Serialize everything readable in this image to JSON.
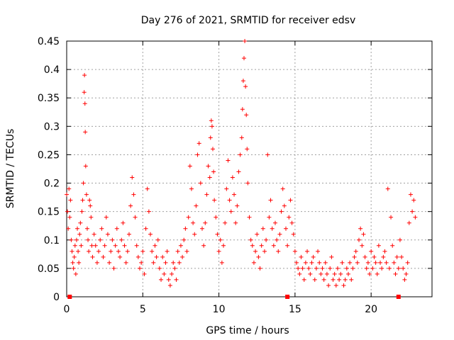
{
  "chart_data": {
    "type": "scatter",
    "title": "Day 276 of 2021, SRMTID for receiver edsv",
    "xlabel": "GPS time / hours",
    "ylabel": "SRMTID / TECUs",
    "xlim": [
      0,
      24
    ],
    "ylim": [
      0,
      0.45
    ],
    "xticks": [
      0,
      5,
      10,
      15,
      20
    ],
    "xtick_labels": [
      "0",
      "5",
      "10",
      "15",
      "20"
    ],
    "yticks": [
      0,
      0.05,
      0.1,
      0.15,
      0.2,
      0.25,
      0.3,
      0.35,
      0.4,
      0.45
    ],
    "ytick_labels": [
      "0",
      "0.05",
      "0.1",
      "0.15",
      "0.2",
      "0.25",
      "0.3",
      "0.35",
      "0.4",
      "0.45"
    ],
    "grid": true,
    "marker": "+",
    "color": "#ff0000",
    "series": [
      {
        "name": "SRMTID",
        "points": [
          [
            0.0,
            0.18
          ],
          [
            0.05,
            0.15
          ],
          [
            0.1,
            0.12
          ],
          [
            0.15,
            0.19
          ],
          [
            0.2,
            0.14
          ],
          [
            0.25,
            0.17
          ],
          [
            0.3,
            0.1
          ],
          [
            0.35,
            0.08
          ],
          [
            0.4,
            0.06
          ],
          [
            0.45,
            0.05
          ],
          [
            0.5,
            0.07
          ],
          [
            0.55,
            0.09
          ],
          [
            0.6,
            0.04
          ],
          [
            0.65,
            0.1
          ],
          [
            0.7,
            0.12
          ],
          [
            0.75,
            0.08
          ],
          [
            0.8,
            0.06
          ],
          [
            0.85,
            0.11
          ],
          [
            0.9,
            0.13
          ],
          [
            0.95,
            0.09
          ],
          [
            1.0,
            0.15
          ],
          [
            1.05,
            0.17
          ],
          [
            1.1,
            0.2
          ],
          [
            1.15,
            0.36
          ],
          [
            1.17,
            0.39
          ],
          [
            1.2,
            0.34
          ],
          [
            1.22,
            0.29
          ],
          [
            1.25,
            0.23
          ],
          [
            1.3,
            0.18
          ],
          [
            1.35,
            0.12
          ],
          [
            1.4,
            0.1
          ],
          [
            1.45,
            0.08
          ],
          [
            1.5,
            0.17
          ],
          [
            1.55,
            0.16
          ],
          [
            1.6,
            0.14
          ],
          [
            1.65,
            0.09
          ],
          [
            1.7,
            0.07
          ],
          [
            1.8,
            0.11
          ],
          [
            1.9,
            0.09
          ],
          [
            2.0,
            0.06
          ],
          [
            2.1,
            0.08
          ],
          [
            2.2,
            0.1
          ],
          [
            2.3,
            0.12
          ],
          [
            2.4,
            0.07
          ],
          [
            2.5,
            0.09
          ],
          [
            2.6,
            0.14
          ],
          [
            2.7,
            0.11
          ],
          [
            2.8,
            0.06
          ],
          [
            2.9,
            0.08
          ],
          [
            3.0,
            0.1
          ],
          [
            3.1,
            0.05
          ],
          [
            3.2,
            0.09
          ],
          [
            3.3,
            0.12
          ],
          [
            3.4,
            0.08
          ],
          [
            3.5,
            0.07
          ],
          [
            3.6,
            0.1
          ],
          [
            3.7,
            0.13
          ],
          [
            3.8,
            0.09
          ],
          [
            3.9,
            0.06
          ],
          [
            4.0,
            0.08
          ],
          [
            4.1,
            0.11
          ],
          [
            4.2,
            0.16
          ],
          [
            4.3,
            0.21
          ],
          [
            4.4,
            0.18
          ],
          [
            4.5,
            0.14
          ],
          [
            4.6,
            0.09
          ],
          [
            4.7,
            0.07
          ],
          [
            4.8,
            0.05
          ],
          [
            4.9,
            0.06
          ],
          [
            5.0,
            0.08
          ],
          [
            5.1,
            0.04
          ],
          [
            5.2,
            0.12
          ],
          [
            5.3,
            0.19
          ],
          [
            5.4,
            0.15
          ],
          [
            5.5,
            0.11
          ],
          [
            5.6,
            0.08
          ],
          [
            5.7,
            0.06
          ],
          [
            5.8,
            0.09
          ],
          [
            5.9,
            0.07
          ],
          [
            6.0,
            0.1
          ],
          [
            6.1,
            0.05
          ],
          [
            6.2,
            0.03
          ],
          [
            6.3,
            0.07
          ],
          [
            6.4,
            0.04
          ],
          [
            6.5,
            0.06
          ],
          [
            6.6,
            0.08
          ],
          [
            6.7,
            0.03
          ],
          [
            6.8,
            0.02
          ],
          [
            6.9,
            0.04
          ],
          [
            7.0,
            0.06
          ],
          [
            7.1,
            0.05
          ],
          [
            7.2,
            0.03
          ],
          [
            7.3,
            0.08
          ],
          [
            7.4,
            0.06
          ],
          [
            7.5,
            0.09
          ],
          [
            7.6,
            0.07
          ],
          [
            7.7,
            0.1
          ],
          [
            7.8,
            0.12
          ],
          [
            7.9,
            0.08
          ],
          [
            8.0,
            0.14
          ],
          [
            8.1,
            0.23
          ],
          [
            8.2,
            0.19
          ],
          [
            8.3,
            0.13
          ],
          [
            8.4,
            0.11
          ],
          [
            8.5,
            0.16
          ],
          [
            8.6,
            0.25
          ],
          [
            8.7,
            0.27
          ],
          [
            8.8,
            0.2
          ],
          [
            8.9,
            0.12
          ],
          [
            9.0,
            0.09
          ],
          [
            9.1,
            0.13
          ],
          [
            9.2,
            0.18
          ],
          [
            9.3,
            0.23
          ],
          [
            9.4,
            0.21
          ],
          [
            9.45,
            0.28
          ],
          [
            9.5,
            0.31
          ],
          [
            9.55,
            0.3
          ],
          [
            9.6,
            0.26
          ],
          [
            9.65,
            0.22
          ],
          [
            9.7,
            0.17
          ],
          [
            9.8,
            0.14
          ],
          [
            9.9,
            0.11
          ],
          [
            10.0,
            0.08
          ],
          [
            10.1,
            0.1
          ],
          [
            10.2,
            0.06
          ],
          [
            10.3,
            0.09
          ],
          [
            10.4,
            0.13
          ],
          [
            10.5,
            0.19
          ],
          [
            10.6,
            0.24
          ],
          [
            10.7,
            0.17
          ],
          [
            10.8,
            0.15
          ],
          [
            10.9,
            0.21
          ],
          [
            11.0,
            0.18
          ],
          [
            11.1,
            0.13
          ],
          [
            11.2,
            0.16
          ],
          [
            11.3,
            0.22
          ],
          [
            11.4,
            0.25
          ],
          [
            11.5,
            0.28
          ],
          [
            11.55,
            0.33
          ],
          [
            11.6,
            0.38
          ],
          [
            11.65,
            0.42
          ],
          [
            11.7,
            0.45
          ],
          [
            11.75,
            0.37
          ],
          [
            11.8,
            0.32
          ],
          [
            11.85,
            0.26
          ],
          [
            11.9,
            0.2
          ],
          [
            12.0,
            0.14
          ],
          [
            12.1,
            0.1
          ],
          [
            12.2,
            0.09
          ],
          [
            12.3,
            0.06
          ],
          [
            12.4,
            0.08
          ],
          [
            12.5,
            0.11
          ],
          [
            12.6,
            0.07
          ],
          [
            12.7,
            0.05
          ],
          [
            12.8,
            0.09
          ],
          [
            12.9,
            0.12
          ],
          [
            13.0,
            0.08
          ],
          [
            13.1,
            0.1
          ],
          [
            13.2,
            0.25
          ],
          [
            13.3,
            0.14
          ],
          [
            13.4,
            0.17
          ],
          [
            13.5,
            0.12
          ],
          [
            13.6,
            0.09
          ],
          [
            13.7,
            0.13
          ],
          [
            13.8,
            0.1
          ],
          [
            13.9,
            0.08
          ],
          [
            14.0,
            0.11
          ],
          [
            14.1,
            0.15
          ],
          [
            14.2,
            0.19
          ],
          [
            14.3,
            0.16
          ],
          [
            14.4,
            0.12
          ],
          [
            14.5,
            0.09
          ],
          [
            14.6,
            0.14
          ],
          [
            14.7,
            0.17
          ],
          [
            14.8,
            0.13
          ],
          [
            14.9,
            0.11
          ],
          [
            15.0,
            0.08
          ],
          [
            15.1,
            0.06
          ],
          [
            15.2,
            0.05
          ],
          [
            15.3,
            0.04
          ],
          [
            15.4,
            0.07
          ],
          [
            15.5,
            0.05
          ],
          [
            15.6,
            0.03
          ],
          [
            15.7,
            0.06
          ],
          [
            15.8,
            0.08
          ],
          [
            15.9,
            0.05
          ],
          [
            16.0,
            0.04
          ],
          [
            16.1,
            0.06
          ],
          [
            16.2,
            0.07
          ],
          [
            16.3,
            0.03
          ],
          [
            16.4,
            0.05
          ],
          [
            16.5,
            0.08
          ],
          [
            16.6,
            0.06
          ],
          [
            16.7,
            0.04
          ],
          [
            16.8,
            0.05
          ],
          [
            16.9,
            0.03
          ],
          [
            17.0,
            0.06
          ],
          [
            17.1,
            0.04
          ],
          [
            17.2,
            0.02
          ],
          [
            17.3,
            0.05
          ],
          [
            17.4,
            0.07
          ],
          [
            17.5,
            0.03
          ],
          [
            17.6,
            0.04
          ],
          [
            17.7,
            0.02
          ],
          [
            17.8,
            0.05
          ],
          [
            17.9,
            0.03
          ],
          [
            18.0,
            0.04
          ],
          [
            18.1,
            0.06
          ],
          [
            18.2,
            0.02
          ],
          [
            18.3,
            0.03
          ],
          [
            18.4,
            0.05
          ],
          [
            18.5,
            0.04
          ],
          [
            18.6,
            0.06
          ],
          [
            18.7,
            0.03
          ],
          [
            18.8,
            0.05
          ],
          [
            18.9,
            0.07
          ],
          [
            19.0,
            0.08
          ],
          [
            19.1,
            0.06
          ],
          [
            19.2,
            0.1
          ],
          [
            19.3,
            0.12
          ],
          [
            19.4,
            0.09
          ],
          [
            19.5,
            0.11
          ],
          [
            19.6,
            0.07
          ],
          [
            19.7,
            0.05
          ],
          [
            19.8,
            0.06
          ],
          [
            19.9,
            0.04
          ],
          [
            20.0,
            0.08
          ],
          [
            20.1,
            0.05
          ],
          [
            20.2,
            0.07
          ],
          [
            20.3,
            0.06
          ],
          [
            20.4,
            0.04
          ],
          [
            20.5,
            0.09
          ],
          [
            20.6,
            0.06
          ],
          [
            20.7,
            0.05
          ],
          [
            20.8,
            0.07
          ],
          [
            20.9,
            0.08
          ],
          [
            21.0,
            0.06
          ],
          [
            21.1,
            0.19
          ],
          [
            21.2,
            0.05
          ],
          [
            21.3,
            0.14
          ],
          [
            21.4,
            0.09
          ],
          [
            21.5,
            0.06
          ],
          [
            21.6,
            0.04
          ],
          [
            21.7,
            0.07
          ],
          [
            21.8,
            0.05
          ],
          [
            21.9,
            0.1
          ],
          [
            22.0,
            0.07
          ],
          [
            22.1,
            0.05
          ],
          [
            22.2,
            0.03
          ],
          [
            22.3,
            0.04
          ],
          [
            22.4,
            0.06
          ],
          [
            22.5,
            0.13
          ],
          [
            22.6,
            0.18
          ],
          [
            22.7,
            0.15
          ],
          [
            22.8,
            0.17
          ],
          [
            22.9,
            0.14
          ]
        ]
      }
    ],
    "gap_markers_x": [
      0.2,
      14.5,
      21.8
    ]
  }
}
